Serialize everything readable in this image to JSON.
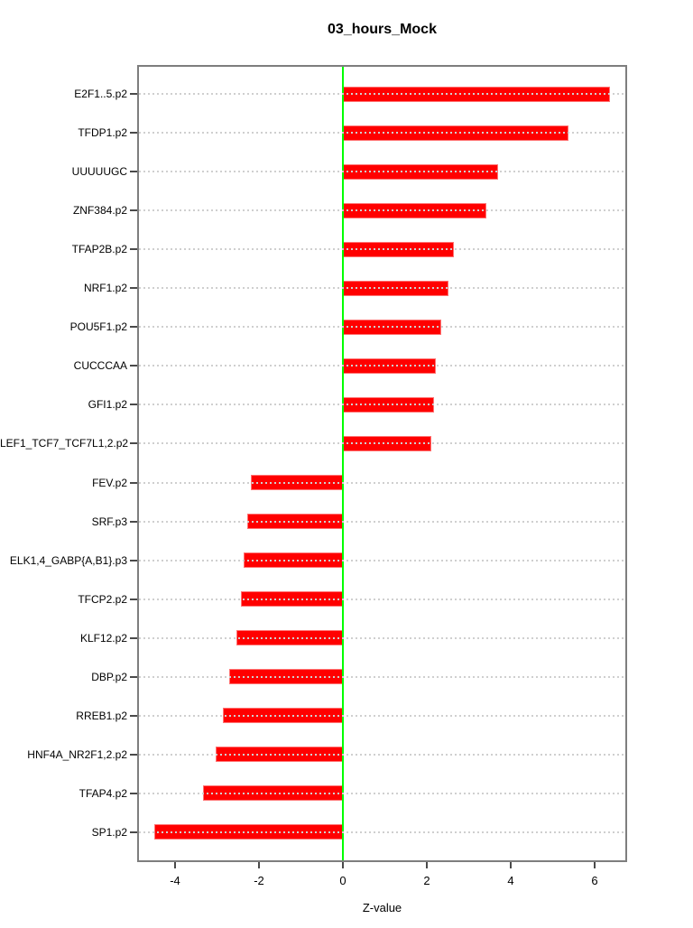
{
  "chart_data": {
    "type": "bar",
    "orientation": "horizontal",
    "title": "03_hours_Mock",
    "xlabel": "Z-value",
    "ylabel": "",
    "categories": [
      "E2F1..5.p2",
      "TFDP1.p2",
      "UUUUUGC",
      "ZNF384.p2",
      "TFAP2B.p2",
      "NRF1.p2",
      "POU5F1.p2",
      "CUCCCAA",
      "GFI1.p2",
      "LEF1_TCF7_TCF7L1,2.p2",
      "FEV.p2",
      "SRF.p3",
      "ELK1,4_GABP{A,B1}.p3",
      "TFCP2.p2",
      "KLF12.p2",
      "DBP.p2",
      "RREB1.p2",
      "HNF4A_NR2F1,2.p2",
      "TFAP4.p2",
      "SP1.p2"
    ],
    "values": [
      6.37,
      5.38,
      3.7,
      3.41,
      2.65,
      2.52,
      2.35,
      2.21,
      2.18,
      2.11,
      -2.2,
      -2.29,
      -2.36,
      -2.42,
      -2.53,
      -2.72,
      -2.87,
      -3.03,
      -3.33,
      -4.49
    ],
    "xticks": [
      -4,
      -2,
      0,
      2,
      4,
      6
    ],
    "xlim": [
      -4.86,
      6.73
    ],
    "bar_color": "#FF0000",
    "zero_line_color": "#00FF00",
    "grid_color": "#CFCFCF",
    "grid_style": "dotted",
    "legend": "none",
    "box_color": "#7E7E7E"
  }
}
